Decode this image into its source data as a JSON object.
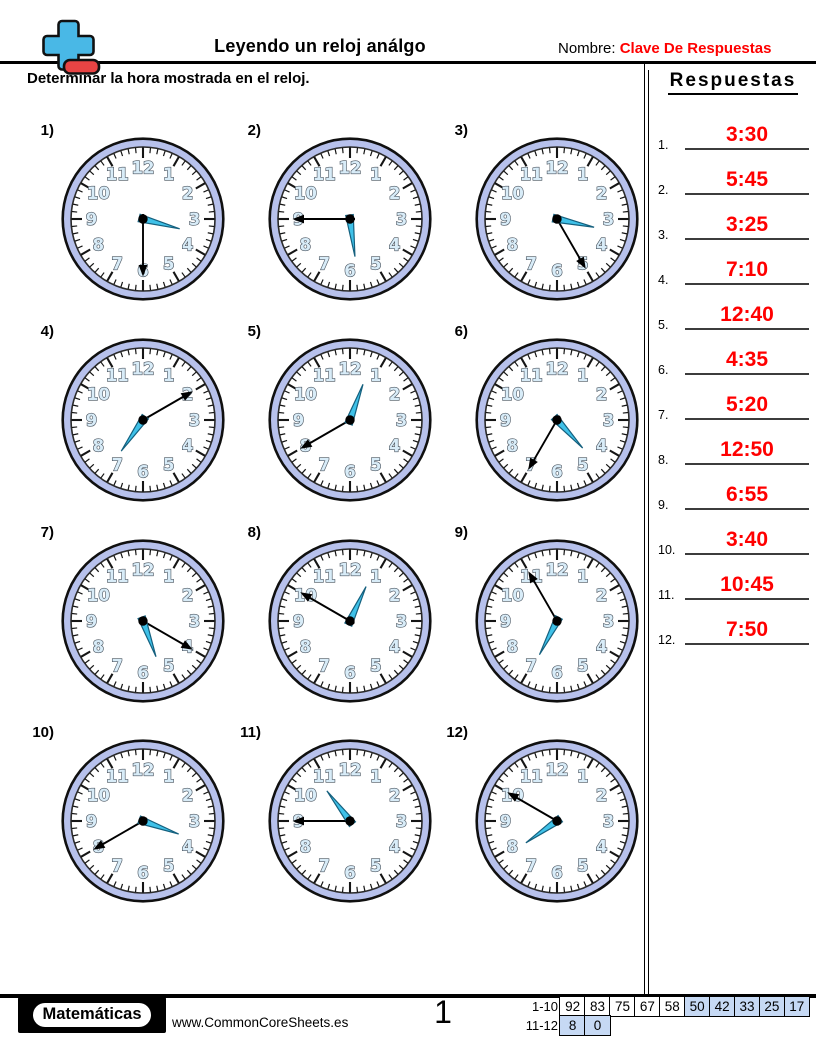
{
  "header": {
    "title": "Leyendo un reloj análgo",
    "name_label": "Nombre:",
    "name_value": "Clave De Respuestas",
    "instruction": "Determinar la hora mostrada en el reloj."
  },
  "answers": {
    "title": "Respuestas",
    "items": [
      {
        "num": "1.",
        "value": "3:30"
      },
      {
        "num": "2.",
        "value": "5:45"
      },
      {
        "num": "3.",
        "value": "3:25"
      },
      {
        "num": "4.",
        "value": "7:10"
      },
      {
        "num": "5.",
        "value": "12:40"
      },
      {
        "num": "6.",
        "value": "4:35"
      },
      {
        "num": "7.",
        "value": "5:20"
      },
      {
        "num": "8.",
        "value": "12:50"
      },
      {
        "num": "9.",
        "value": "6:55"
      },
      {
        "num": "10.",
        "value": "3:40"
      },
      {
        "num": "11.",
        "value": "10:45"
      },
      {
        "num": "12.",
        "value": "7:50"
      }
    ]
  },
  "problems": [
    {
      "label": "1)",
      "time": "3:30",
      "hour": 3,
      "minute": 30
    },
    {
      "label": "2)",
      "time": "5:45",
      "hour": 5,
      "minute": 45
    },
    {
      "label": "3)",
      "time": "3:25",
      "hour": 3,
      "minute": 25
    },
    {
      "label": "4)",
      "time": "7:10",
      "hour": 7,
      "minute": 10
    },
    {
      "label": "5)",
      "time": "12:40",
      "hour": 12,
      "minute": 40
    },
    {
      "label": "6)",
      "time": "4:35",
      "hour": 4,
      "minute": 35
    },
    {
      "label": "7)",
      "time": "5:20",
      "hour": 5,
      "minute": 20
    },
    {
      "label": "8)",
      "time": "12:50",
      "hour": 12,
      "minute": 50
    },
    {
      "label": "9)",
      "time": "6:55",
      "hour": 6,
      "minute": 55
    },
    {
      "label": "10)",
      "time": "3:40",
      "hour": 3,
      "minute": 40
    },
    {
      "label": "11)",
      "time": "10:45",
      "hour": 10,
      "minute": 45
    },
    {
      "label": "12)",
      "time": "7:50",
      "hour": 7,
      "minute": 50
    }
  ],
  "clock": {
    "face_numbers": [
      1,
      2,
      3,
      4,
      5,
      6,
      7,
      8,
      9,
      10,
      11,
      12
    ],
    "colors": {
      "ring": "#b7c1ec",
      "ring_outline": "#101010",
      "face": "#ffffff",
      "face_outline": "#2b2b2b",
      "tick": "#151515",
      "number_fill": "#d8ecf8",
      "number_outline": "#4a5560",
      "hour_hand": "#3fc1e8",
      "hour_hand_outline": "#15607e",
      "minute_hand": "#000000",
      "center_dot": "#000000"
    }
  },
  "footer": {
    "brand": "Matemáticas",
    "website": "www.CommonCoreSheets.es",
    "page_number": "1",
    "highlight_color": "#c6d9f4",
    "score_table": {
      "rows": [
        {
          "label": "1-10",
          "cells": [
            {
              "value": "92",
              "highlighted": false
            },
            {
              "value": "83",
              "highlighted": false
            },
            {
              "value": "75",
              "highlighted": false
            },
            {
              "value": "67",
              "highlighted": false
            },
            {
              "value": "58",
              "highlighted": false
            },
            {
              "value": "50",
              "highlighted": true
            },
            {
              "value": "42",
              "highlighted": true
            },
            {
              "value": "33",
              "highlighted": true
            },
            {
              "value": "25",
              "highlighted": true
            },
            {
              "value": "17",
              "highlighted": true
            }
          ]
        },
        {
          "label": "11-12",
          "cells": [
            {
              "value": "8",
              "highlighted": true
            },
            {
              "value": "0",
              "highlighted": true
            }
          ]
        }
      ]
    }
  },
  "logo": {
    "plus_icon": "plus-minus-math-logo"
  }
}
